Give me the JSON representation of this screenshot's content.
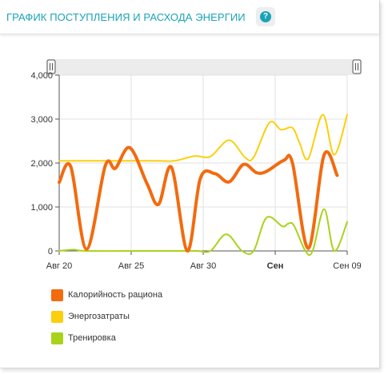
{
  "header": {
    "title": "ГРАФИК ПОСТУПЛЕНИЯ И РАСХОДА ЭНЕРГИИ",
    "help_glyph": "?",
    "help_icon": "question-circle-icon"
  },
  "colors": {
    "accent": "#1aa3b8",
    "calories": "#f26b0f",
    "energy": "#fbcf0e",
    "training": "#a8d31a"
  },
  "chart_data": {
    "type": "line",
    "x_axis": {
      "min": 0,
      "max": 20,
      "ticks": [
        {
          "x": 0,
          "label": "Авг 20",
          "bold": false
        },
        {
          "x": 5,
          "label": "Авг 25",
          "bold": false
        },
        {
          "x": 10,
          "label": "Авг 30",
          "bold": false
        },
        {
          "x": 15,
          "label": "Сен",
          "bold": true
        },
        {
          "x": 20,
          "label": "Сен 09",
          "bold": false
        }
      ]
    },
    "y_axis": {
      "min": 0,
      "max": 4000,
      "ticks": [
        {
          "y": 0,
          "label": "0"
        },
        {
          "y": 1000,
          "label": "1,000"
        },
        {
          "y": 2000,
          "label": "2,000"
        },
        {
          "y": 3000,
          "label": "3,000"
        },
        {
          "y": 4000,
          "label": "4,000"
        }
      ]
    },
    "grid": true,
    "range_selector": true,
    "series": [
      {
        "name": "Калорийность рациона",
        "color": "#f26b0f",
        "points": [
          [
            0,
            1560
          ],
          [
            0.8,
            1920
          ],
          [
            1.9,
            40
          ],
          [
            3.2,
            1940
          ],
          [
            3.9,
            1880
          ],
          [
            4.9,
            2350
          ],
          [
            6.1,
            1530
          ],
          [
            6.9,
            1060
          ],
          [
            7.8,
            1900
          ],
          [
            8.9,
            0
          ],
          [
            9.8,
            1650
          ],
          [
            10.8,
            1760
          ],
          [
            11.8,
            1570
          ],
          [
            12.8,
            1970
          ],
          [
            13.7,
            1780
          ],
          [
            14.4,
            1810
          ],
          [
            15.6,
            2060
          ],
          [
            16.2,
            2000
          ],
          [
            17.3,
            60
          ],
          [
            18.4,
            2190
          ],
          [
            19.3,
            1720
          ]
        ]
      },
      {
        "name": "Энергозатраты",
        "color": "#fbcf0e",
        "points": [
          [
            0,
            2050
          ],
          [
            6.5,
            2050
          ],
          [
            8,
            2050
          ],
          [
            9.4,
            2160
          ],
          [
            10.5,
            2150
          ],
          [
            11.8,
            2520
          ],
          [
            12.9,
            2130
          ],
          [
            13.5,
            2130
          ],
          [
            14.6,
            2920
          ],
          [
            15.4,
            2760
          ],
          [
            16.2,
            2800
          ],
          [
            16.7,
            2450
          ],
          [
            17.3,
            2100
          ],
          [
            18.3,
            3100
          ],
          [
            19.1,
            2190
          ],
          [
            20,
            3100
          ]
        ]
      },
      {
        "name": "Тренировка",
        "color": "#a8d31a",
        "points": [
          [
            0,
            0
          ],
          [
            1,
            30
          ],
          [
            2,
            0
          ],
          [
            7,
            0
          ],
          [
            9.5,
            0
          ],
          [
            10.5,
            0
          ],
          [
            11.6,
            380
          ],
          [
            12.7,
            0
          ],
          [
            13.5,
            0
          ],
          [
            14.4,
            760
          ],
          [
            15.5,
            560
          ],
          [
            15.9,
            620
          ],
          [
            16.3,
            580
          ],
          [
            17.1,
            0
          ],
          [
            17.6,
            0
          ],
          [
            18.4,
            950
          ],
          [
            19.1,
            0
          ],
          [
            20,
            660
          ]
        ]
      }
    ],
    "legend": {
      "placement": "bottom-left",
      "items": [
        {
          "label": "Калорийность рациона",
          "color": "#f26b0f"
        },
        {
          "label": "Энергозатраты",
          "color": "#fbcf0e"
        },
        {
          "label": "Тренировка",
          "color": "#a8d31a"
        }
      ]
    }
  }
}
